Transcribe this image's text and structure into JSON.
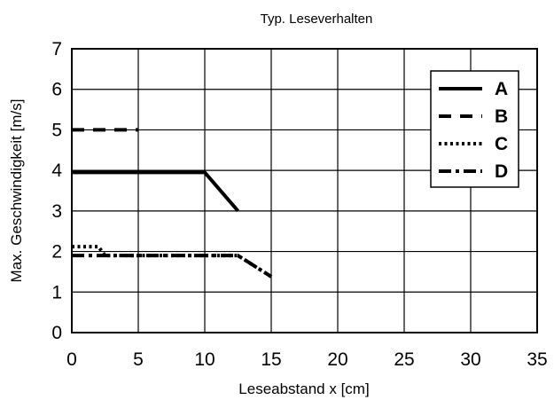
{
  "chart_data": {
    "type": "line",
    "title": "Typ. Leseverhalten",
    "xlabel": "Leseabstand x [cm]",
    "ylabel": "Max. Geschwindigkeit [m/s]",
    "xlim": [
      0,
      35
    ],
    "ylim": [
      0,
      7
    ],
    "x_ticks": [
      "0",
      "5",
      "10",
      "15",
      "20",
      "25",
      "30",
      "35"
    ],
    "y_ticks": [
      "0",
      "1",
      "2",
      "3",
      "4",
      "5",
      "6",
      "7"
    ],
    "grid": true,
    "legend_position": "top-right",
    "series": [
      {
        "name": "A",
        "style": "solid",
        "color": "#000000",
        "points": [
          [
            0,
            3.95
          ],
          [
            10,
            3.95
          ],
          [
            12.5,
            3.0
          ]
        ]
      },
      {
        "name": "B",
        "style": "dashed",
        "color": "#000000",
        "points": [
          [
            0,
            5.0
          ],
          [
            5,
            5.0
          ]
        ]
      },
      {
        "name": "C",
        "style": "dotted",
        "color": "#000000",
        "points": [
          [
            0,
            2.12
          ],
          [
            2,
            2.12
          ],
          [
            2.5,
            1.9
          ],
          [
            12.5,
            1.9
          ],
          [
            15,
            1.38
          ]
        ]
      },
      {
        "name": "D",
        "style": "dashdot",
        "color": "#000000",
        "points": [
          [
            0,
            1.9
          ],
          [
            12.5,
            1.9
          ],
          [
            15,
            1.38
          ]
        ]
      }
    ]
  }
}
